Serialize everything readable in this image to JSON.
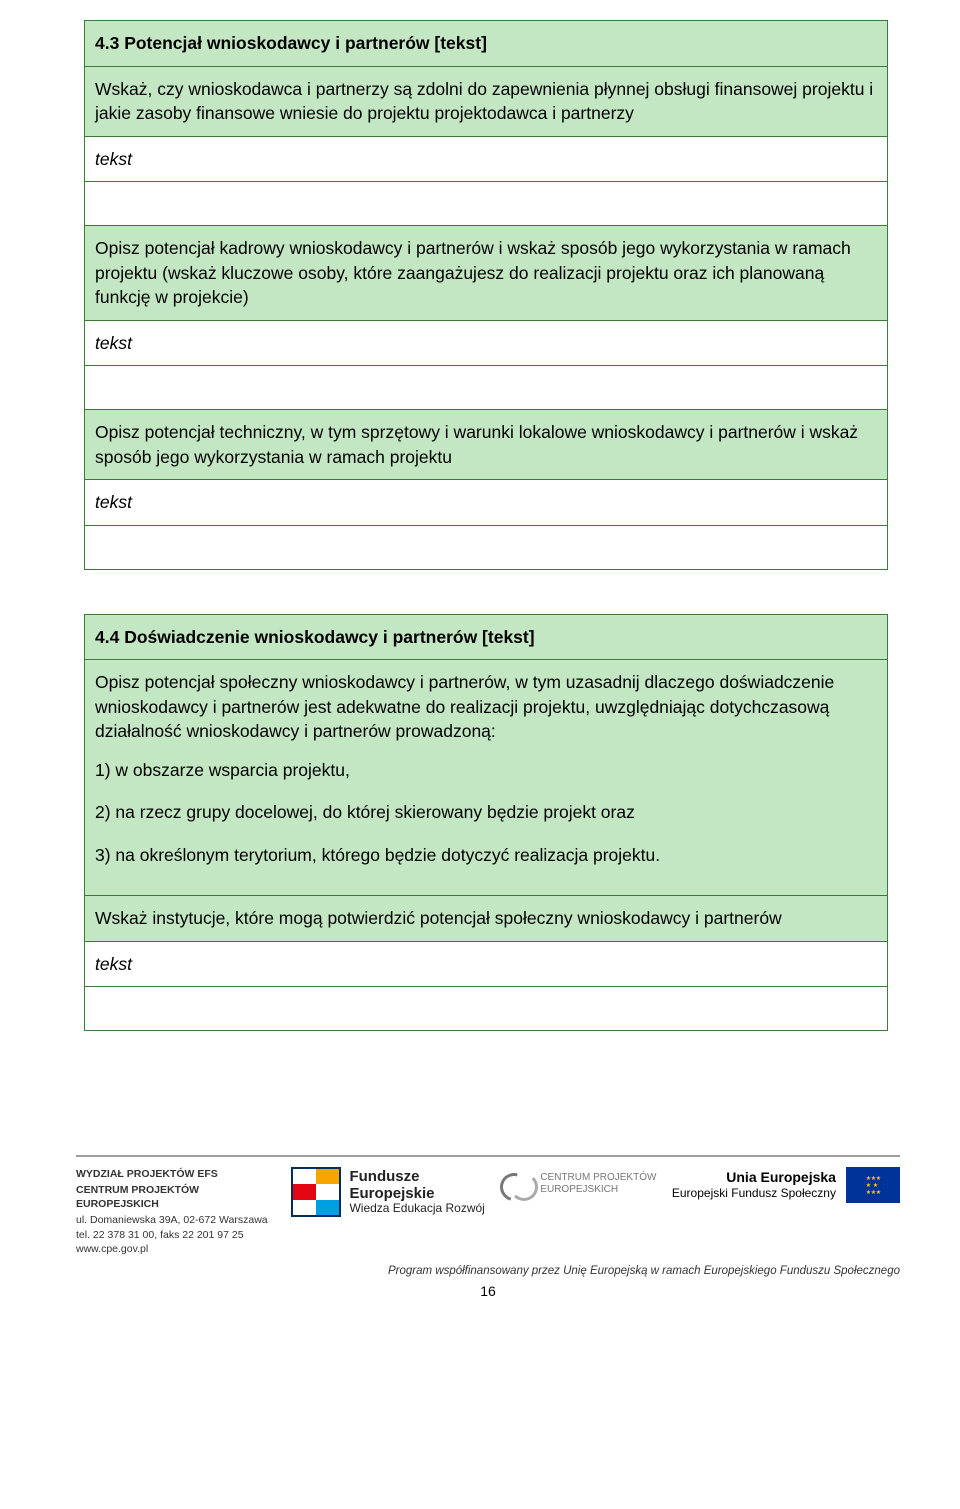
{
  "colors": {
    "cell_border": "#3b7a3b",
    "header_bg": "#c3e6c3",
    "body_text": "#000000",
    "page_bg": "#ffffff",
    "divider": "#9e9e9e"
  },
  "typography": {
    "body_fontsize_pt": 13,
    "footer_fontsize_pt": 8,
    "font_family": "Arial"
  },
  "section43": {
    "title": "4.3 Potencjał wnioskodawcy i partnerów [tekst]",
    "desc": "Wskaż, czy wnioskodawca i partnerzy są zdolni do zapewnienia płynnej obsługi finansowej projektu i jakie zasoby finansowe wniesie do projektu projektodawca i partnerzy",
    "input1": "tekst",
    "sub1": "Opisz potencjał kadrowy wnioskodawcy i partnerów i wskaż sposób jego wykorzystania w ramach projektu (wskaż kluczowe osoby, które zaangażujesz do realizacji projektu oraz ich planowaną funkcję w projekcie)",
    "input2": "tekst",
    "sub2": "Opisz potencjał techniczny, w tym sprzętowy i warunki lokalowe wnioskodawcy i partnerów i wskaż sposób jego wykorzystania w ramach projektu",
    "input3": "tekst"
  },
  "section44": {
    "title": "4.4 Doświadczenie wnioskodawcy i partnerów [tekst]",
    "desc_intro": "Opisz potencjał społeczny wnioskodawcy i partnerów, w tym uzasadnij dlaczego doświadczenie wnioskodawcy i partnerów jest adekwatne do realizacji projektu, uwzględniając dotychczasową działalność wnioskodawcy i partnerów prowadzoną:",
    "list": [
      "1) w obszarze wsparcia projektu,",
      "2) na rzecz grupy docelowej, do której skierowany będzie projekt oraz",
      "3) na określonym terytorium, którego będzie dotyczyć realizacja projektu."
    ],
    "sub1": "Wskaż instytucje, które mogą potwierdzić potencjał społeczny wnioskodawcy i partnerów",
    "input1": "tekst"
  },
  "footer": {
    "addr": {
      "line1": "WYDZIAŁ PROJEKTÓW EFS",
      "line2": "CENTRUM PROJEKTÓW EUROPEJSKICH",
      "line3": "ul. Domaniewska 39A, 02-672 Warszawa",
      "line4": "tel. 22 378 31 00, faks 22 201 97 25",
      "line5": "www.cpe.gov.pl"
    },
    "fe": {
      "l1": "Fundusze",
      "l2": "Europejskie",
      "l3": "Wiedza Edukacja Rozwój"
    },
    "cpe": {
      "l1": "CENTRUM PROJEKTÓW",
      "l2": "EUROPEJSKICH"
    },
    "ue": {
      "l1": "Unia Europejska",
      "l2": "Europejski Fundusz Społeczny"
    },
    "caption": "Program współfinansowany przez Unię Europejską w ramach Europejskiego Funduszu Społecznego",
    "page": "16"
  }
}
